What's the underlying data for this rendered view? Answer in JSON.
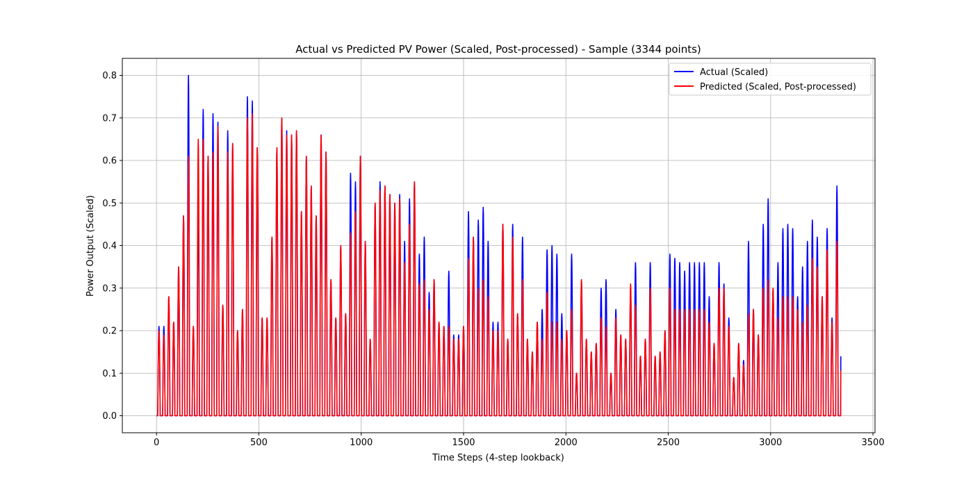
{
  "chart_data": {
    "type": "line",
    "title": "Actual vs Predicted PV Power (Scaled, Post-processed) - Sample (3344 points)",
    "xlabel": "Time Steps (4-step lookback)",
    "ylabel": "Power Output (Scaled)",
    "xlim": [
      -167,
      3510
    ],
    "ylim": [
      -0.04,
      0.84
    ],
    "xticks": [
      0,
      500,
      1000,
      1500,
      2000,
      2500,
      3000,
      3500
    ],
    "yticks": [
      0.0,
      0.1,
      0.2,
      0.3,
      0.4,
      0.5,
      0.6,
      0.7,
      0.8
    ],
    "xtick_labels": [
      "0",
      "500",
      "1000",
      "1500",
      "2000",
      "2500",
      "3000",
      "3500"
    ],
    "ytick_labels": [
      "0.0",
      "0.1",
      "0.2",
      "0.3",
      "0.4",
      "0.5",
      "0.6",
      "0.7",
      "0.8"
    ],
    "grid": true,
    "legend_position": "upper-right",
    "n_points": 3344,
    "period": 24,
    "series": [
      {
        "name": "Actual (Scaled)",
        "color": "#0000ff",
        "daily_peaks": [
          0.21,
          0.21,
          0.28,
          0.22,
          0.35,
          0.47,
          0.8,
          0.21,
          0.49,
          0.72,
          0.61,
          0.71,
          0.69,
          0.26,
          0.67,
          0.64,
          0.2,
          0.25,
          0.75,
          0.74,
          0.63,
          0.23,
          0.23,
          0.42,
          0.63,
          0.7,
          0.67,
          0.66,
          0.67,
          0.48,
          0.61,
          0.54,
          0.47,
          0.66,
          0.62,
          0.32,
          0.23,
          0.4,
          0.24,
          0.57,
          0.55,
          0.61,
          0.41,
          0.18,
          0.5,
          0.55,
          0.54,
          0.52,
          0.5,
          0.52,
          0.41,
          0.51,
          0.55,
          0.38,
          0.42,
          0.29,
          0.32,
          0.22,
          0.21,
          0.34,
          0.19,
          0.19,
          0.21,
          0.48,
          0.42,
          0.46,
          0.49,
          0.41,
          0.22,
          0.22,
          0.45,
          0.18,
          0.45,
          0.24,
          0.42,
          0.18,
          0.15,
          0.22,
          0.25,
          0.39,
          0.4,
          0.38,
          0.24,
          0.2,
          0.38,
          0.1,
          0.32,
          0.18,
          0.15,
          0.17,
          0.3,
          0.32,
          0.1,
          0.25,
          0.19,
          0.18,
          0.3,
          0.36,
          0.14,
          0.18,
          0.36,
          0.14,
          0.15,
          0.2,
          0.38,
          0.37,
          0.36,
          0.34,
          0.36,
          0.36,
          0.36,
          0.36,
          0.28,
          0.17,
          0.36,
          0.31,
          0.23,
          0.09,
          0.17,
          0.13,
          0.41,
          0.25,
          0.19,
          0.45,
          0.51,
          0.3,
          0.36,
          0.44,
          0.45,
          0.44,
          0.28,
          0.35,
          0.41,
          0.46,
          0.42,
          0.28,
          0.44,
          0.23,
          0.54
        ]
      },
      {
        "name": "Predicted (Scaled, Post-processed)",
        "color": "#ff0000",
        "daily_peaks": [
          0.2,
          0.19,
          0.28,
          0.22,
          0.35,
          0.47,
          0.61,
          0.21,
          0.65,
          0.65,
          0.61,
          0.62,
          0.68,
          0.26,
          0.62,
          0.64,
          0.2,
          0.25,
          0.7,
          0.71,
          0.63,
          0.23,
          0.23,
          0.42,
          0.63,
          0.7,
          0.66,
          0.66,
          0.67,
          0.48,
          0.61,
          0.54,
          0.47,
          0.66,
          0.62,
          0.32,
          0.23,
          0.4,
          0.24,
          0.43,
          0.48,
          0.61,
          0.41,
          0.18,
          0.5,
          0.53,
          0.54,
          0.52,
          0.5,
          0.51,
          0.36,
          0.45,
          0.55,
          0.31,
          0.32,
          0.25,
          0.32,
          0.22,
          0.21,
          0.21,
          0.18,
          0.18,
          0.21,
          0.37,
          0.42,
          0.3,
          0.32,
          0.28,
          0.2,
          0.2,
          0.45,
          0.18,
          0.42,
          0.24,
          0.32,
          0.18,
          0.15,
          0.22,
          0.18,
          0.29,
          0.22,
          0.22,
          0.18,
          0.2,
          0.25,
          0.1,
          0.32,
          0.18,
          0.15,
          0.17,
          0.23,
          0.21,
          0.1,
          0.23,
          0.19,
          0.18,
          0.31,
          0.26,
          0.14,
          0.18,
          0.3,
          0.14,
          0.15,
          0.2,
          0.3,
          0.25,
          0.25,
          0.25,
          0.25,
          0.25,
          0.25,
          0.25,
          0.22,
          0.17,
          0.3,
          0.3,
          0.21,
          0.09,
          0.17,
          0.12,
          0.24,
          0.25,
          0.19,
          0.3,
          0.32,
          0.3,
          0.23,
          0.28,
          0.28,
          0.28,
          0.25,
          0.22,
          0.26,
          0.37,
          0.35,
          0.28,
          0.39,
          0.22,
          0.41
        ]
      }
    ]
  }
}
